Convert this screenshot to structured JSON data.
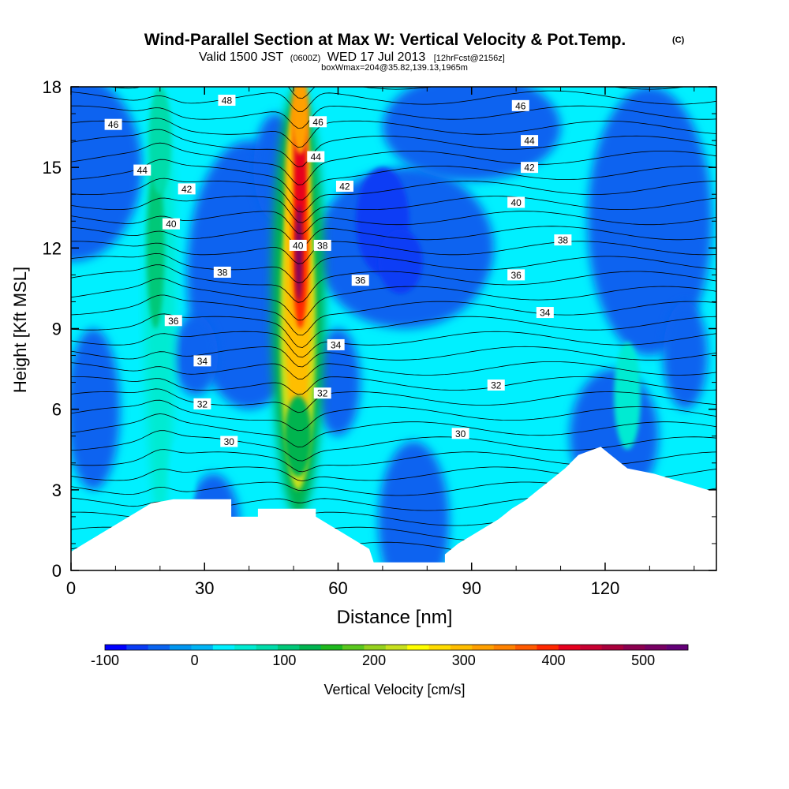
{
  "header": {
    "title": "Wind-Parallel Section at Max W: Vertical Velocity & Pot.Temp.",
    "title_mark": "(C)",
    "valid_prefix": "Valid 1500 JST",
    "valid_utc": "(0600Z)",
    "valid_date": "WED 17 Jul 2013",
    "valid_fcst": "[12hrFcst@2156z]",
    "subline": "boxWmax=204@35.82,139.13,1965m"
  },
  "chart_data": {
    "type": "heatmap",
    "xlabel": "Distance [nm]",
    "ylabel": "Height [Kft MSL]",
    "xlim": [
      0,
      145
    ],
    "ylim": [
      0,
      18
    ],
    "x_ticks": [
      0,
      30,
      60,
      90,
      120
    ],
    "y_ticks": [
      0,
      3,
      6,
      9,
      12,
      15,
      18
    ],
    "colorbar": {
      "label": "Vertical Velocity [cm/s]",
      "tick_values": [
        -100,
        0,
        100,
        200,
        300,
        400,
        500
      ],
      "range": [
        -100,
        550
      ],
      "colors": [
        "#0000ff",
        "#0a3cf5",
        "#0a64f0",
        "#0096f0",
        "#00b4f5",
        "#00f0ff",
        "#00ebd2",
        "#00dcaa",
        "#00c878",
        "#00b450",
        "#1eb91e",
        "#5ac81e",
        "#96d21e",
        "#c8e11e",
        "#ffff00",
        "#ffdc00",
        "#ffbe00",
        "#ffa000",
        "#ff8200",
        "#ff5a00",
        "#ff2800",
        "#e6001e",
        "#c80032",
        "#aa003c",
        "#8c0050",
        "#780064",
        "#640078"
      ]
    },
    "theta_contour_labels": [
      {
        "value": "48",
        "x": 35,
        "z": 17.5
      },
      {
        "value": "46",
        "x": 9.5,
        "z": 16.6
      },
      {
        "value": "44",
        "x": 16,
        "z": 14.9
      },
      {
        "value": "42",
        "x": 26,
        "z": 14.2
      },
      {
        "value": "40",
        "x": 22.5,
        "z": 12.9
      },
      {
        "value": "38",
        "x": 34,
        "z": 11.1
      },
      {
        "value": "36",
        "x": 23,
        "z": 9.3
      },
      {
        "value": "34",
        "x": 29.5,
        "z": 7.8
      },
      {
        "value": "32",
        "x": 29.5,
        "z": 6.2
      },
      {
        "value": "30",
        "x": 35.5,
        "z": 4.8
      },
      {
        "value": "46",
        "x": 55.5,
        "z": 16.7
      },
      {
        "value": "44",
        "x": 55,
        "z": 15.4
      },
      {
        "value": "42",
        "x": 61.5,
        "z": 14.3
      },
      {
        "value": "40",
        "x": 51,
        "z": 12.1
      },
      {
        "value": "38",
        "x": 56.5,
        "z": 12.1
      },
      {
        "value": "36",
        "x": 65,
        "z": 10.8
      },
      {
        "value": "34",
        "x": 59.5,
        "z": 8.4
      },
      {
        "value": "32",
        "x": 56.5,
        "z": 6.6
      },
      {
        "value": "30",
        "x": 87.5,
        "z": 5.1
      },
      {
        "value": "32",
        "x": 95.5,
        "z": 6.9
      },
      {
        "value": "34",
        "x": 106.5,
        "z": 9.6
      },
      {
        "value": "36",
        "x": 100,
        "z": 11.0
      },
      {
        "value": "38",
        "x": 110.5,
        "z": 12.3
      },
      {
        "value": "40",
        "x": 100,
        "z": 13.7
      },
      {
        "value": "42",
        "x": 103,
        "z": 15.0
      },
      {
        "value": "44",
        "x": 103,
        "z": 16.0
      },
      {
        "value": "46",
        "x": 101,
        "z": 17.3
      }
    ],
    "terrain": [
      [
        0,
        0.7
      ],
      [
        3,
        1.0
      ],
      [
        6,
        1.3
      ],
      [
        9,
        1.6
      ],
      [
        12,
        1.9
      ],
      [
        15,
        2.2
      ],
      [
        18,
        2.5
      ],
      [
        23,
        2.65
      ],
      [
        36,
        2.65
      ],
      [
        36,
        2.0
      ],
      [
        42,
        2.0
      ],
      [
        42,
        2.3
      ],
      [
        55,
        2.3
      ],
      [
        55,
        2.0
      ],
      [
        58,
        1.7
      ],
      [
        61,
        1.4
      ],
      [
        64,
        1.1
      ],
      [
        67,
        0.8
      ],
      [
        68,
        0.3
      ],
      [
        84,
        0.3
      ],
      [
        84,
        0.6
      ],
      [
        87,
        1.0
      ],
      [
        90,
        1.3
      ],
      [
        93,
        1.6
      ],
      [
        96,
        1.9
      ],
      [
        99,
        2.3
      ],
      [
        102,
        2.6
      ],
      [
        105,
        3.0
      ],
      [
        108,
        3.4
      ],
      [
        111,
        3.8
      ],
      [
        114,
        4.3
      ],
      [
        119,
        4.6
      ],
      [
        122,
        4.2
      ],
      [
        125,
        3.8
      ],
      [
        131,
        3.6
      ],
      [
        137,
        3.3
      ],
      [
        143,
        3.0
      ],
      [
        145,
        3.0
      ]
    ]
  }
}
